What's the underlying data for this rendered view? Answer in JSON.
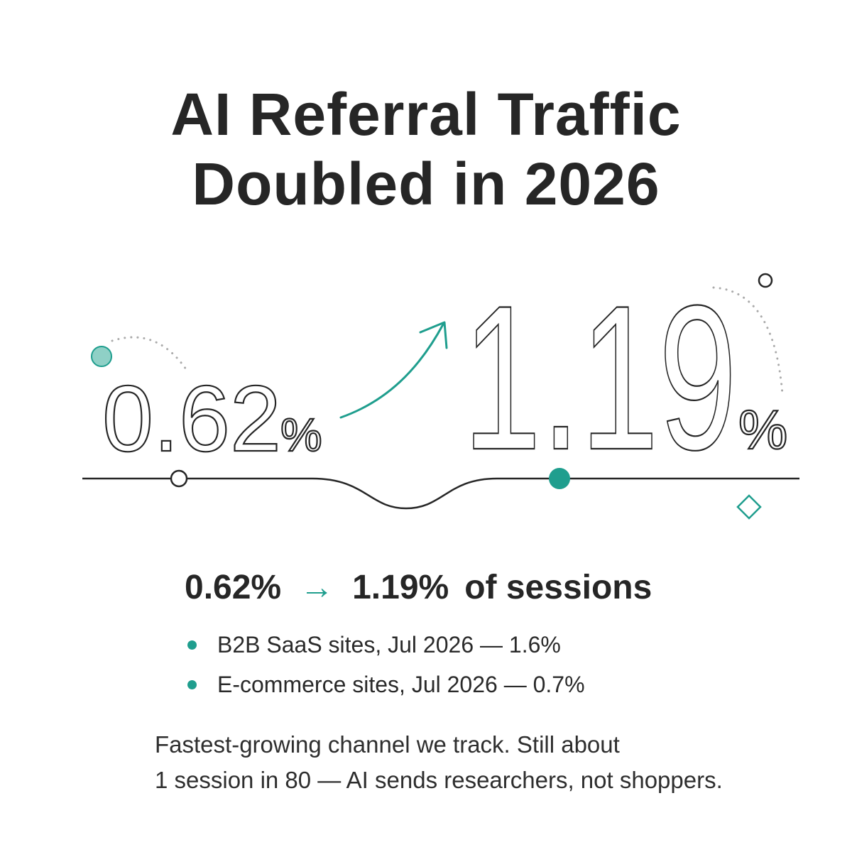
{
  "headline": {
    "line1": "AI Referral Traffic",
    "line2": "Doubled in 2026"
  },
  "stats": {
    "before_value": "0.62",
    "after_value": "1.19",
    "unit": "%"
  },
  "summary": {
    "before": "0.62%",
    "arrow": "→",
    "after": "1.19%",
    "suffix": "of sessions"
  },
  "bullets": [
    {
      "text": "B2B SaaS sites, Jul 2026 — 1.6%"
    },
    {
      "text": "E-commerce sites, Jul 2026 — 0.7%"
    }
  ],
  "footnote": {
    "line1": "Fastest-growing channel we track. Still about",
    "line2": "1 session in 80 — AI sends researchers, not shoppers."
  },
  "colors": {
    "accent": "#1f9e8e",
    "text": "#262626",
    "muted_dots": "#aaaaaa"
  }
}
